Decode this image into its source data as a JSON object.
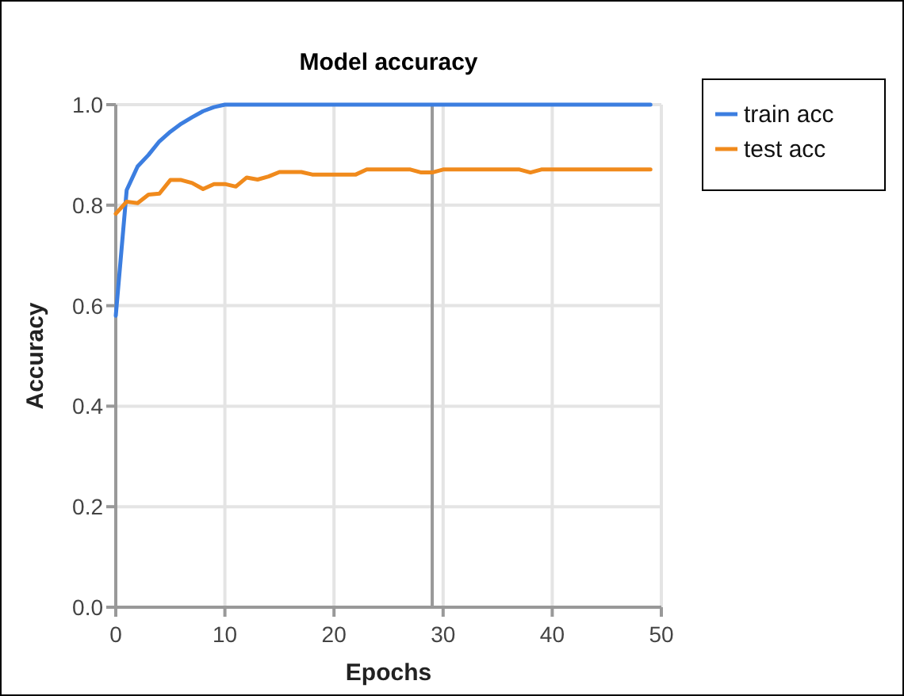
{
  "chart_data": {
    "type": "line",
    "title": "Model accuracy",
    "xlabel": "Epochs",
    "ylabel": "Accuracy",
    "x": [
      0,
      1,
      2,
      3,
      4,
      5,
      6,
      7,
      8,
      9,
      10,
      11,
      12,
      13,
      14,
      15,
      16,
      17,
      18,
      19,
      20,
      21,
      22,
      23,
      24,
      25,
      26,
      27,
      28,
      29,
      30,
      31,
      32,
      33,
      34,
      35,
      36,
      37,
      38,
      39,
      40,
      41,
      42,
      43,
      44,
      45,
      46,
      47,
      48,
      49
    ],
    "series": [
      {
        "name": "train acc",
        "color": "#3c7ee0",
        "values": [
          0.58,
          0.83,
          0.877,
          0.9,
          0.927,
          0.946,
          0.962,
          0.975,
          0.987,
          0.995,
          1,
          1,
          1,
          1,
          1,
          1,
          1,
          1,
          1,
          1,
          1,
          1,
          1,
          1,
          1,
          1,
          1,
          1,
          1,
          1,
          1,
          1,
          1,
          1,
          1,
          1,
          1,
          1,
          1,
          1,
          1,
          1,
          1,
          1,
          1,
          1,
          1,
          1,
          1,
          1
        ]
      },
      {
        "name": "test acc",
        "color": "#f08a1c",
        "values": [
          0.783,
          0.807,
          0.804,
          0.821,
          0.823,
          0.85,
          0.85,
          0.844,
          0.832,
          0.842,
          0.842,
          0.837,
          0.855,
          0.851,
          0.857,
          0.866,
          0.866,
          0.866,
          0.861,
          0.861,
          0.861,
          0.861,
          0.861,
          0.871,
          0.871,
          0.871,
          0.871,
          0.871,
          0.865,
          0.865,
          0.871,
          0.871,
          0.871,
          0.871,
          0.871,
          0.871,
          0.871,
          0.871,
          0.865,
          0.871,
          0.871,
          0.871,
          0.871,
          0.871,
          0.871,
          0.871,
          0.871,
          0.871,
          0.871,
          0.871
        ]
      }
    ],
    "xlim": [
      0,
      50
    ],
    "xticks": [
      0,
      10,
      20,
      30,
      40,
      50
    ],
    "ylim": [
      0,
      1
    ],
    "yticks": [
      {
        "value": 0,
        "label": "0.0"
      },
      0.2,
      0.4,
      0.6,
      0.8,
      {
        "value": 1,
        "label": "1.0"
      }
    ],
    "ref_lines": [
      {
        "axis": "x",
        "value": 29,
        "color": "#999999"
      }
    ],
    "grid": true,
    "legend": "top right",
    "marker": "none",
    "line_style": "solid"
  }
}
